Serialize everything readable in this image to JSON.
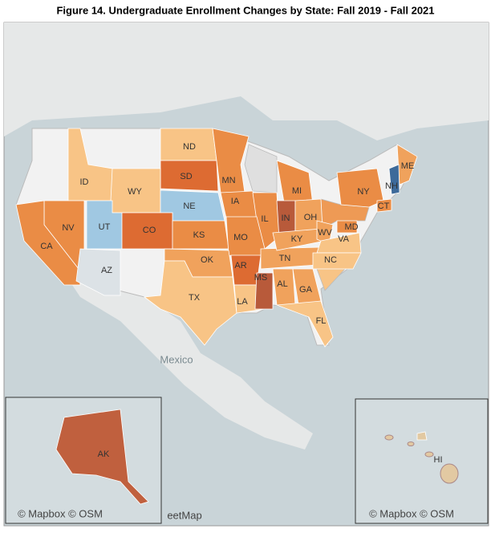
{
  "title": "Figure 14. Undergraduate Enrollment Changes by State: Fall 2019 - Fall 2021",
  "states": [
    {
      "label": "ND",
      "color": "#f8c486"
    },
    {
      "label": "SD",
      "color": "#dd6b32"
    },
    {
      "label": "MN",
      "color": "#ea8c45"
    },
    {
      "label": "WY",
      "color": "#f8c486"
    },
    {
      "label": "ID",
      "color": "#f8c486"
    },
    {
      "label": "NE",
      "color": "#a0c8e2"
    },
    {
      "label": "IA",
      "color": "#ea8c45"
    },
    {
      "label": "MI",
      "color": "#ea8c45"
    },
    {
      "label": "IL",
      "color": "#ea8c45"
    },
    {
      "label": "IN",
      "color": "#b85a3a"
    },
    {
      "label": "OH",
      "color": "#f0a25c"
    },
    {
      "label": "NY",
      "color": "#ea8c45"
    },
    {
      "label": "ME",
      "color": "#f0a25c"
    },
    {
      "label": "NH",
      "color": "#3d6a9a"
    },
    {
      "label": "CT",
      "color": "#ea8c45"
    },
    {
      "label": "NV",
      "color": "#ea8c45"
    },
    {
      "label": "CA",
      "color": "#ea8c45"
    },
    {
      "label": "UT",
      "color": "#a0c8e2"
    },
    {
      "label": "CO",
      "color": "#dd6b32"
    },
    {
      "label": "AZ",
      "color": "#dce2e6"
    },
    {
      "label": "KS",
      "color": "#ea8c45"
    },
    {
      "label": "MO",
      "color": "#ea8c45"
    },
    {
      "label": "OK",
      "color": "#f0a25c"
    },
    {
      "label": "TX",
      "color": "#f8c486"
    },
    {
      "label": "AR",
      "color": "#dd6b32"
    },
    {
      "label": "LA",
      "color": "#f8c486"
    },
    {
      "label": "MS",
      "color": "#b85a3a"
    },
    {
      "label": "AL",
      "color": "#f0a25c"
    },
    {
      "label": "GA",
      "color": "#f0a25c"
    },
    {
      "label": "FL",
      "color": "#f8c486"
    },
    {
      "label": "TN",
      "color": "#f0a25c"
    },
    {
      "label": "KY",
      "color": "#f0a25c"
    },
    {
      "label": "WV",
      "color": "#f0a25c"
    },
    {
      "label": "VA",
      "color": "#f8c486"
    },
    {
      "label": "NC",
      "color": "#f8c486"
    },
    {
      "label": "MD",
      "color": "#ea8c45"
    },
    {
      "label": "AK",
      "color": "#c0603e"
    },
    {
      "label": "HI",
      "color": "#e2c9a2"
    }
  ],
  "map_labels": {
    "country": "Mexico",
    "partial": "eetMap"
  },
  "attributions": [
    "© Mapbox © OSM",
    "© Mapbox © OSM"
  ]
}
